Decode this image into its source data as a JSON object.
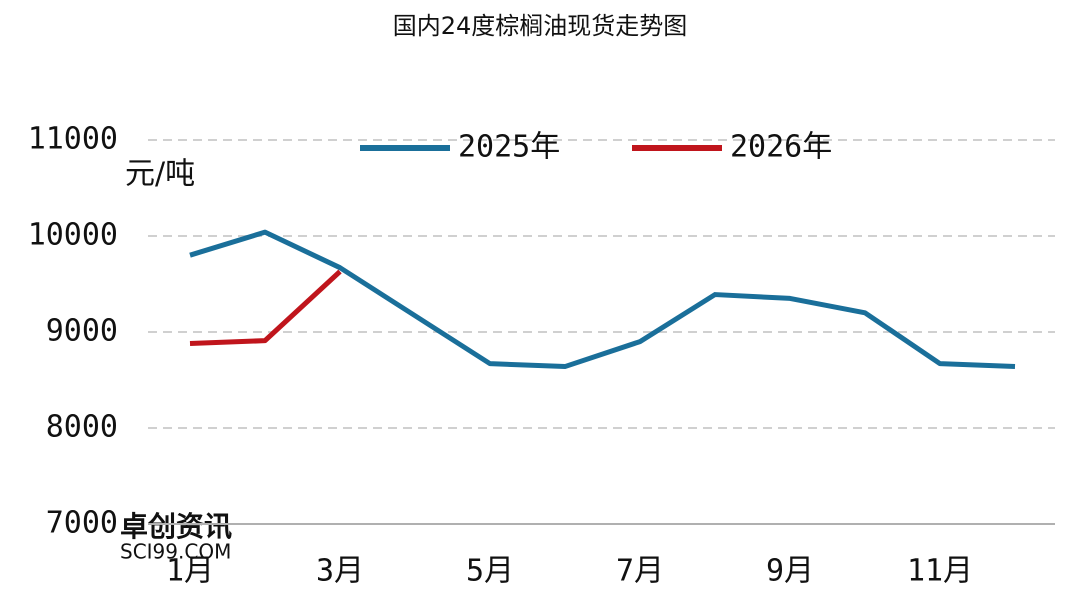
{
  "chart_data": {
    "type": "line",
    "title": "国内24度棕榈油现货走势图",
    "y_label": "元/吨",
    "watermark": [
      "卓创资讯",
      "SCI99.COM"
    ],
    "categories": [
      "1月",
      null,
      "3月",
      null,
      "5月",
      null,
      "7月",
      null,
      "9月",
      null,
      "11月",
      null
    ],
    "series": [
      {
        "name": "2025年",
        "color": "#1a6f9a",
        "values": [
          9800,
          10040,
          9670,
          9170,
          8670,
          8640,
          8900,
          9390,
          9350,
          9200,
          8670,
          8640
        ]
      },
      {
        "name": "2026年",
        "color": "#c0151c",
        "values": [
          8880,
          8910,
          9630,
          null,
          null,
          null,
          null,
          null,
          null,
          null,
          null,
          null
        ]
      }
    ],
    "ylim": [
      7000,
      11000
    ],
    "yticks": [
      7000,
      8000,
      9000,
      10000,
      11000
    ],
    "grid": true,
    "legend": "top"
  }
}
